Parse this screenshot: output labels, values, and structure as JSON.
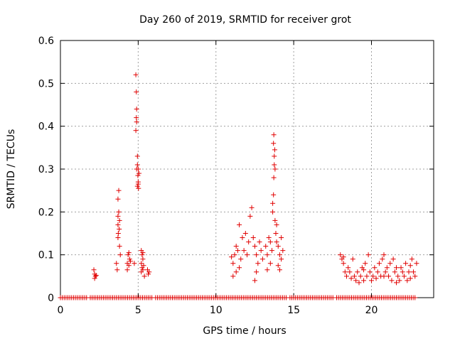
{
  "chart_data": {
    "type": "scatter",
    "title": "Day 260 of 2019, SRMTID for receiver grot",
    "xlabel": "GPS time / hours",
    "ylabel": "SRMTID / TECUs",
    "xlim": [
      0,
      24
    ],
    "ylim": [
      0,
      0.6
    ],
    "xticks": [
      0,
      5,
      10,
      15,
      20
    ],
    "xtick_labels": [
      "0",
      "5",
      "10",
      "15",
      "20"
    ],
    "yticks": [
      0,
      0.1,
      0.2,
      0.3,
      0.4,
      0.5,
      0.6
    ],
    "ytick_labels": [
      "0",
      "0.1",
      "0.2",
      "0.3",
      "0.4",
      "0.5",
      "0.6"
    ],
    "grid": true,
    "marker": "+",
    "marker_color": "#e00000",
    "series": [
      {
        "name": "SRMTID",
        "points": [
          [
            2.15,
            0.065
          ],
          [
            2.2,
            0.055
          ],
          [
            2.25,
            0.05
          ],
          [
            2.3,
            0.052
          ],
          [
            2.2,
            0.045
          ],
          [
            3.6,
            0.08
          ],
          [
            3.65,
            0.065
          ],
          [
            3.7,
            0.17
          ],
          [
            3.72,
            0.15
          ],
          [
            3.7,
            0.14
          ],
          [
            3.75,
            0.2
          ],
          [
            3.7,
            0.23
          ],
          [
            3.75,
            0.25
          ],
          [
            3.8,
            0.18
          ],
          [
            3.78,
            0.16
          ],
          [
            3.8,
            0.12
          ],
          [
            3.85,
            0.1
          ],
          [
            3.7,
            0.19
          ],
          [
            4.3,
            0.08
          ],
          [
            4.35,
            0.1
          ],
          [
            4.4,
            0.105
          ],
          [
            4.45,
            0.09
          ],
          [
            4.3,
            0.065
          ],
          [
            4.4,
            0.075
          ],
          [
            4.5,
            0.085
          ],
          [
            4.75,
            0.08
          ],
          [
            4.85,
            0.52
          ],
          [
            4.88,
            0.48
          ],
          [
            4.9,
            0.44
          ],
          [
            4.88,
            0.42
          ],
          [
            4.9,
            0.41
          ],
          [
            4.85,
            0.39
          ],
          [
            4.95,
            0.33
          ],
          [
            4.95,
            0.31
          ],
          [
            5.0,
            0.3
          ],
          [
            4.98,
            0.285
          ],
          [
            5.0,
            0.27
          ],
          [
            4.95,
            0.26
          ],
          [
            5.02,
            0.255
          ],
          [
            5.05,
            0.29
          ],
          [
            4.9,
            0.3
          ],
          [
            5.0,
            0.265
          ],
          [
            5.2,
            0.11
          ],
          [
            5.25,
            0.1
          ],
          [
            5.3,
            0.09
          ],
          [
            5.2,
            0.08
          ],
          [
            5.25,
            0.07
          ],
          [
            5.3,
            0.065
          ],
          [
            5.35,
            0.075
          ],
          [
            5.4,
            0.05
          ],
          [
            5.2,
            0.06
          ],
          [
            5.3,
            0.105
          ],
          [
            5.6,
            0.065
          ],
          [
            5.65,
            0.055
          ],
          [
            5.7,
            0.06
          ],
          [
            11.0,
            0.095
          ],
          [
            11.1,
            0.08
          ],
          [
            11.2,
            0.1
          ],
          [
            11.3,
            0.12
          ],
          [
            11.4,
            0.11
          ],
          [
            11.5,
            0.17
          ],
          [
            11.6,
            0.09
          ],
          [
            11.5,
            0.07
          ],
          [
            11.3,
            0.06
          ],
          [
            11.7,
            0.14
          ],
          [
            11.8,
            0.11
          ],
          [
            11.9,
            0.15
          ],
          [
            12.0,
            0.1
          ],
          [
            12.1,
            0.13
          ],
          [
            12.2,
            0.19
          ],
          [
            12.3,
            0.21
          ],
          [
            12.4,
            0.14
          ],
          [
            12.5,
            0.12
          ],
          [
            12.6,
            0.1
          ],
          [
            12.7,
            0.08
          ],
          [
            12.6,
            0.06
          ],
          [
            12.8,
            0.13
          ],
          [
            12.9,
            0.11
          ],
          [
            13.0,
            0.09
          ],
          [
            12.5,
            0.04
          ],
          [
            11.1,
            0.05
          ],
          [
            13.2,
            0.12
          ],
          [
            13.3,
            0.1
          ],
          [
            13.4,
            0.14
          ],
          [
            13.5,
            0.13
          ],
          [
            13.5,
            0.08
          ],
          [
            13.6,
            0.11
          ],
          [
            13.3,
            0.065
          ],
          [
            13.65,
            0.2
          ],
          [
            13.7,
            0.24
          ],
          [
            13.72,
            0.28
          ],
          [
            13.75,
            0.31
          ],
          [
            13.75,
            0.33
          ],
          [
            13.78,
            0.345
          ],
          [
            13.7,
            0.36
          ],
          [
            13.72,
            0.38
          ],
          [
            13.8,
            0.3
          ],
          [
            13.65,
            0.22
          ],
          [
            13.8,
            0.18
          ],
          [
            13.9,
            0.17
          ],
          [
            13.85,
            0.15
          ],
          [
            14.0,
            0.12
          ],
          [
            14.1,
            0.1
          ],
          [
            14.2,
            0.09
          ],
          [
            14.0,
            0.075
          ],
          [
            14.2,
            0.14
          ],
          [
            14.3,
            0.11
          ],
          [
            13.9,
            0.13
          ],
          [
            14.1,
            0.065
          ],
          [
            18.0,
            0.1
          ],
          [
            18.1,
            0.09
          ],
          [
            18.2,
            0.08
          ],
          [
            18.3,
            0.06
          ],
          [
            18.4,
            0.05
          ],
          [
            18.5,
            0.07
          ],
          [
            18.6,
            0.06
          ],
          [
            18.7,
            0.045
          ],
          [
            18.8,
            0.09
          ],
          [
            18.9,
            0.05
          ],
          [
            19.0,
            0.04
          ],
          [
            19.1,
            0.06
          ],
          [
            19.2,
            0.035
          ],
          [
            19.3,
            0.05
          ],
          [
            19.4,
            0.07
          ],
          [
            19.5,
            0.04
          ],
          [
            19.6,
            0.08
          ],
          [
            19.7,
            0.05
          ],
          [
            19.8,
            0.1
          ],
          [
            19.9,
            0.06
          ],
          [
            20.0,
            0.04
          ],
          [
            20.1,
            0.05
          ],
          [
            20.2,
            0.07
          ],
          [
            20.3,
            0.045
          ],
          [
            20.4,
            0.06
          ],
          [
            20.5,
            0.08
          ],
          [
            20.6,
            0.05
          ],
          [
            20.7,
            0.09
          ],
          [
            20.8,
            0.1
          ],
          [
            20.9,
            0.06
          ],
          [
            21.0,
            0.07
          ],
          [
            21.1,
            0.05
          ],
          [
            21.2,
            0.08
          ],
          [
            21.3,
            0.04
          ],
          [
            21.4,
            0.09
          ],
          [
            21.5,
            0.06
          ],
          [
            21.6,
            0.07
          ],
          [
            21.7,
            0.05
          ],
          [
            21.8,
            0.04
          ],
          [
            21.9,
            0.07
          ],
          [
            22.0,
            0.06
          ],
          [
            22.1,
            0.05
          ],
          [
            22.2,
            0.08
          ],
          [
            22.3,
            0.04
          ],
          [
            22.4,
            0.06
          ],
          [
            22.5,
            0.075
          ],
          [
            22.6,
            0.09
          ],
          [
            22.7,
            0.06
          ],
          [
            22.8,
            0.05
          ],
          [
            22.9,
            0.08
          ],
          [
            18.2,
            0.095
          ],
          [
            19.5,
            0.065
          ],
          [
            20.8,
            0.05
          ],
          [
            21.6,
            0.035
          ],
          [
            22.5,
            0.045
          ]
        ]
      },
      {
        "name": "zero-level",
        "x_ranges": [
          [
            0.0,
            22.9
          ]
        ],
        "gaps": [
          [
            1.8,
            1.9
          ],
          [
            6.0,
            6.1
          ],
          [
            14.6,
            14.7
          ],
          [
            17.6,
            17.7
          ]
        ],
        "step": 0.12,
        "y": 0
      }
    ]
  }
}
